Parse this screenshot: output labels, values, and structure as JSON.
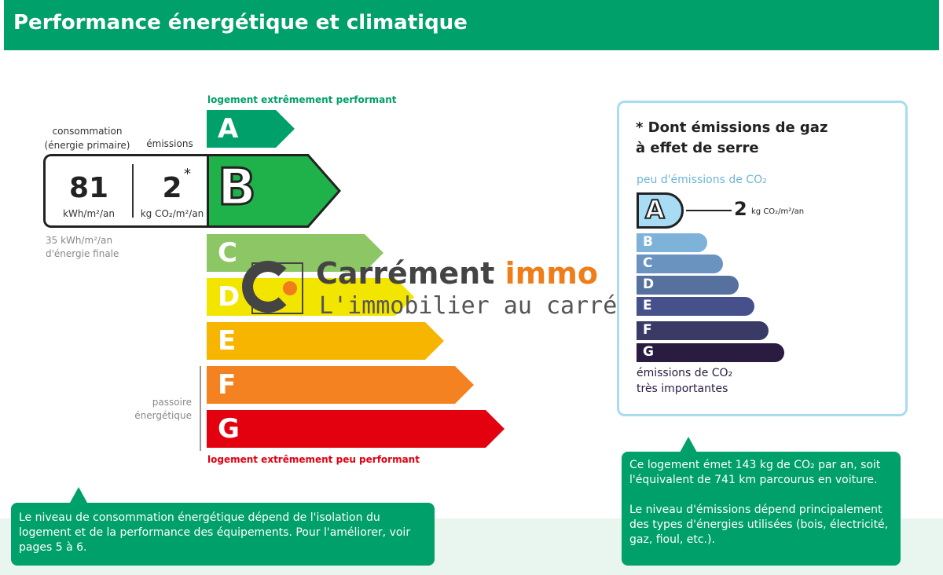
{
  "header": {
    "title": "Performance énergétique et climatique"
  },
  "energy": {
    "top_label": "logement extrêmement performant",
    "bottom_label": "logement extrêmement peu performant",
    "consumption_label_1": "consommation",
    "consumption_label_2": "(énergie primaire)",
    "emissions_label": "émissions",
    "consumption_value": "81",
    "consumption_unit": "kWh/m²/an",
    "emissions_value": "2",
    "emissions_star": "*",
    "emissions_unit": "kg CO₂/m²/an",
    "final_1": "35 kWh/m²/an",
    "final_2": "d'énergie finale",
    "passoire_1": "passoire",
    "passoire_2": "énergétique",
    "current_class": "B",
    "classes": [
      {
        "letter": "A",
        "color": "#00a06a"
      },
      {
        "letter": "B",
        "color": "#1fb24a"
      },
      {
        "letter": "C",
        "color": "#8cc665"
      },
      {
        "letter": "D",
        "color": "#f2e500"
      },
      {
        "letter": "E",
        "color": "#f7b500"
      },
      {
        "letter": "F",
        "color": "#f58220"
      },
      {
        "letter": "G",
        "color": "#e3000f"
      }
    ]
  },
  "ghg": {
    "title_1": "* Dont émissions de gaz",
    "title_2": "à effet de serre",
    "top_label": "peu d'émissions de CO₂",
    "current_class": "A",
    "value": "2",
    "unit": "kg CO₂/m²/an",
    "bottom_1": "émissions de CO₂",
    "bottom_2": "très importantes",
    "classes": [
      {
        "letter": "A",
        "color": "#a8dcf5"
      },
      {
        "letter": "B",
        "color": "#7fb2d8"
      },
      {
        "letter": "C",
        "color": "#6b93c0"
      },
      {
        "letter": "D",
        "color": "#57719f"
      },
      {
        "letter": "E",
        "color": "#46508a"
      },
      {
        "letter": "F",
        "color": "#3a3a66"
      },
      {
        "letter": "G",
        "color": "#2a1b40"
      }
    ]
  },
  "logo": {
    "brand_1": "Carrément",
    "brand_2": "immo",
    "tagline": "L'immobilier au carré"
  },
  "callouts": {
    "left": "Le niveau de consommation énergétique dépend de l'isolation du logement et de la performance des équipements. Pour l'améliorer, voir pages 5 à 6.",
    "right_1": "Ce logement émet 143 kg de CO₂ par an, soit l'équivalent de 741 km parcourus en voiture.",
    "right_2": "Le niveau d'émissions dépend principalement des types d'énergies utilisées (bois, électricité, gaz, fioul, etc.)."
  }
}
